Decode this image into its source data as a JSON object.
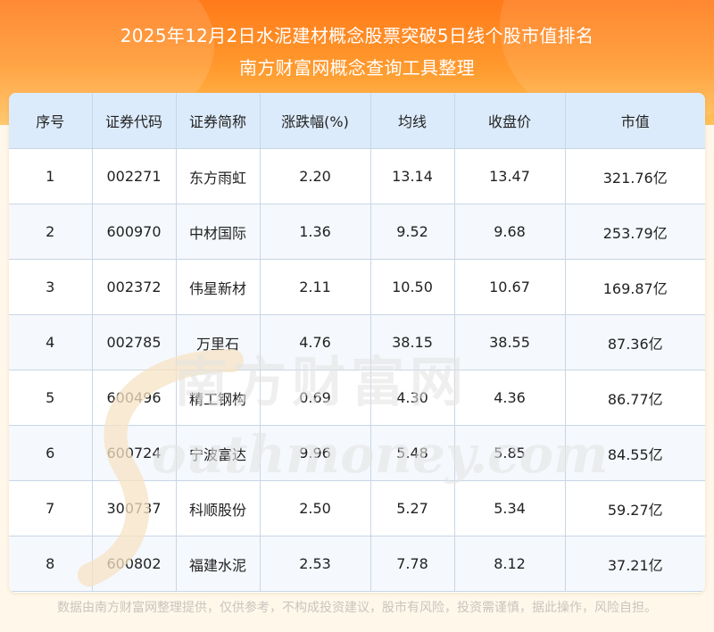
{
  "header": {
    "title_line1": "2025年12月2日水泥建材概念股票突破5日线个股市值排名",
    "title_line2": "南方财富网概念查询工具整理"
  },
  "table": {
    "columns": [
      "序号",
      "证券代码",
      "证券简称",
      "涨跌幅(%)",
      "均线",
      "收盘价",
      "市值"
    ],
    "rows": [
      [
        "1",
        "002271",
        "东方雨虹",
        "2.20",
        "13.14",
        "13.47",
        "321.76亿"
      ],
      [
        "2",
        "600970",
        "中材国际",
        "1.36",
        "9.52",
        "9.68",
        "253.79亿"
      ],
      [
        "3",
        "002372",
        "伟星新材",
        "2.11",
        "10.50",
        "10.67",
        "169.87亿"
      ],
      [
        "4",
        "002785",
        "万里石",
        "4.76",
        "38.15",
        "38.55",
        "87.36亿"
      ],
      [
        "5",
        "600496",
        "精工钢构",
        "0.69",
        "4.30",
        "4.36",
        "86.77亿"
      ],
      [
        "6",
        "600724",
        "宁波富达",
        "9.96",
        "5.48",
        "5.85",
        "84.55亿"
      ],
      [
        "7",
        "300737",
        "科顺股份",
        "2.50",
        "5.27",
        "5.34",
        "59.27亿"
      ],
      [
        "8",
        "600802",
        "福建水泥",
        "2.53",
        "7.78",
        "8.12",
        "37.21亿"
      ]
    ]
  },
  "watermark": {
    "cn": "南方财富网",
    "en": "outhmoney.com"
  },
  "footer": {
    "disclaimer": "数据由南方财富网整理提供，仅供参考，不构成投资建议，股市有风险，投资需谨慎，据此操作，风险自担。"
  },
  "colors": {
    "banner_top": "#ff7a1a",
    "banner_bottom": "#ffc25a",
    "header_row": "#dcebfb",
    "grid": "#c9d6e6"
  }
}
